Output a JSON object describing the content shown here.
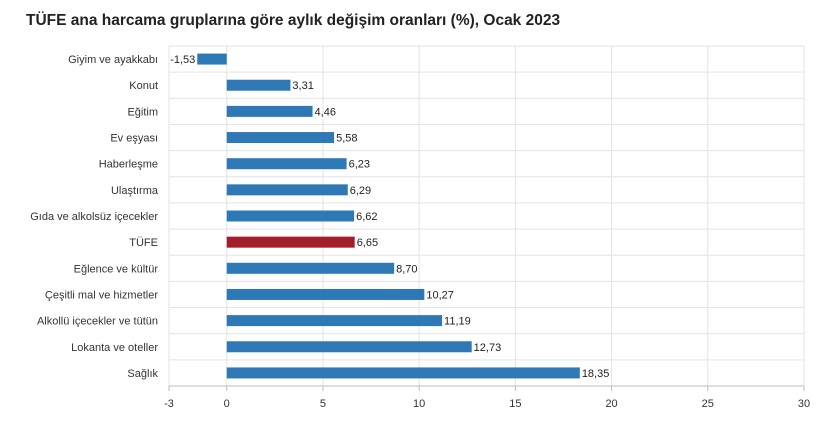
{
  "chart_data": {
    "type": "bar",
    "orientation": "horizontal",
    "title": "TÜFE ana harcama gruplarına göre aylık değişim oranları (%), Ocak 2023",
    "categories": [
      "Giyim ve ayakkabı",
      "Konut",
      "Eğitim",
      "Ev eşyası",
      "Haberleşme",
      "Ulaştırma",
      "Gıda ve alkolsüz içecekler",
      "TÜFE",
      "Eğlence ve kültür",
      "Çeşitli mal ve hizmetler",
      "Alkollü içecekler ve tütün",
      "Lokanta ve oteller",
      "Sağlık"
    ],
    "values": [
      -1.53,
      3.31,
      4.46,
      5.58,
      6.23,
      6.29,
      6.62,
      6.65,
      8.7,
      10.27,
      11.19,
      12.73,
      18.35
    ],
    "value_labels": [
      "-1,53",
      "3,31",
      "4,46",
      "5,58",
      "6,23",
      "6,29",
      "6,62",
      "6,65",
      "8,70",
      "10,27",
      "11,19",
      "12,73",
      "18,35"
    ],
    "highlight_category": "TÜFE",
    "xlim": [
      -3,
      30
    ],
    "x_ticks": [
      -3,
      0,
      5,
      10,
      15,
      20,
      25,
      30
    ],
    "x_tick_labels": [
      "-3",
      "0",
      "5",
      "10",
      "15",
      "20",
      "25",
      "30"
    ],
    "grid": true,
    "legend": "none",
    "colors": {
      "bar": "#2e79b5",
      "highlight": "#a41d2a",
      "grid": "#e3e3e3",
      "axis": "#bdbdbd"
    }
  }
}
